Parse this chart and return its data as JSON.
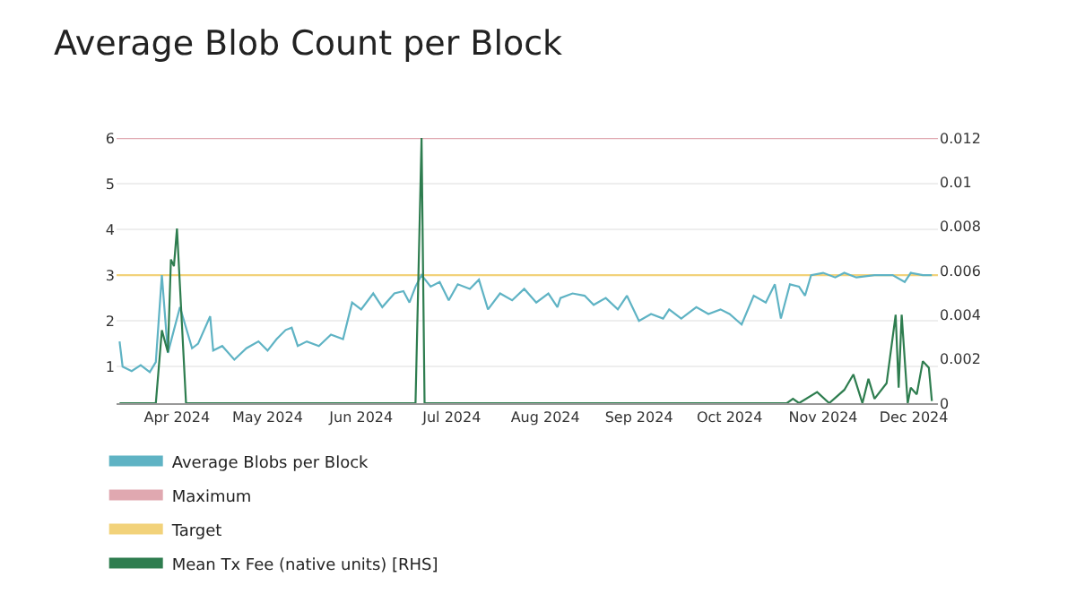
{
  "chart_data": {
    "type": "line",
    "title": "Average Blob Count per Block",
    "xlim": [
      "2024-03-12",
      "2024-12-09"
    ],
    "xticks": [
      {
        "value": "2024-04-01",
        "label": "Apr 2024"
      },
      {
        "value": "2024-05-01",
        "label": "May 2024"
      },
      {
        "value": "2024-06-01",
        "label": "Jun 2024"
      },
      {
        "value": "2024-07-01",
        "label": "Jul 2024"
      },
      {
        "value": "2024-08-01",
        "label": "Aug 2024"
      },
      {
        "value": "2024-09-01",
        "label": "Sep 2024"
      },
      {
        "value": "2024-10-01",
        "label": "Oct 2024"
      },
      {
        "value": "2024-11-01",
        "label": "Nov 2024"
      },
      {
        "value": "2024-12-01",
        "label": "Dec 2024"
      }
    ],
    "ylim": [
      0.2,
      6
    ],
    "yticks": [
      1,
      2,
      3,
      4,
      5,
      6
    ],
    "y2lim": [
      0,
      0.012
    ],
    "y2ticks": [
      0,
      0.002,
      0.004,
      0.006,
      0.008,
      0.01,
      0.012
    ],
    "grid": "y",
    "legend": "bottom",
    "ref_lines": [
      {
        "axis": "y",
        "value": 6,
        "label": "Maximum",
        "color": "#e0a8b0"
      },
      {
        "axis": "y",
        "value": 3,
        "label": "Target",
        "color": "#f2d27a"
      }
    ],
    "series": [
      {
        "name": "Average Blobs per Block",
        "color": "#5fb3c4",
        "x": [
          "2024-03-13",
          "2024-03-14",
          "2024-03-17",
          "2024-03-20",
          "2024-03-23",
          "2024-03-25",
          "2024-03-27",
          "2024-03-29",
          "2024-04-02",
          "2024-04-06",
          "2024-04-08",
          "2024-04-12",
          "2024-04-13",
          "2024-04-16",
          "2024-04-20",
          "2024-04-24",
          "2024-04-28",
          "2024-05-01",
          "2024-05-04",
          "2024-05-07",
          "2024-05-09",
          "2024-05-11",
          "2024-05-14",
          "2024-05-18",
          "2024-05-22",
          "2024-05-26",
          "2024-05-29",
          "2024-06-01",
          "2024-06-05",
          "2024-06-08",
          "2024-06-12",
          "2024-06-15",
          "2024-06-17",
          "2024-06-19",
          "2024-06-21",
          "2024-06-24",
          "2024-06-27",
          "2024-06-30",
          "2024-07-03",
          "2024-07-07",
          "2024-07-10",
          "2024-07-13",
          "2024-07-17",
          "2024-07-21",
          "2024-07-25",
          "2024-07-29",
          "2024-08-02",
          "2024-08-05",
          "2024-08-06",
          "2024-08-10",
          "2024-08-14",
          "2024-08-17",
          "2024-08-21",
          "2024-08-25",
          "2024-08-28",
          "2024-09-01",
          "2024-09-05",
          "2024-09-09",
          "2024-09-11",
          "2024-09-15",
          "2024-09-20",
          "2024-09-24",
          "2024-09-28",
          "2024-10-01",
          "2024-10-05",
          "2024-10-09",
          "2024-10-13",
          "2024-10-16",
          "2024-10-18",
          "2024-10-21",
          "2024-10-24",
          "2024-10-26",
          "2024-10-28",
          "2024-11-01",
          "2024-11-05",
          "2024-11-08",
          "2024-11-12",
          "2024-11-18",
          "2024-11-24",
          "2024-11-28",
          "2024-11-30",
          "2024-12-04",
          "2024-12-07"
        ],
        "values": [
          1.55,
          1.0,
          0.9,
          1.03,
          0.88,
          1.1,
          3.0,
          1.3,
          2.3,
          1.4,
          1.5,
          2.1,
          1.35,
          1.45,
          1.15,
          1.4,
          1.55,
          1.35,
          1.6,
          1.8,
          1.85,
          1.45,
          1.55,
          1.45,
          1.7,
          1.6,
          2.4,
          2.25,
          2.6,
          2.3,
          2.6,
          2.65,
          2.4,
          2.75,
          3.0,
          2.75,
          2.85,
          2.45,
          2.8,
          2.7,
          2.9,
          2.25,
          2.6,
          2.45,
          2.7,
          2.4,
          2.6,
          2.3,
          2.5,
          2.6,
          2.55,
          2.35,
          2.5,
          2.25,
          2.55,
          2.0,
          2.15,
          2.05,
          2.25,
          2.05,
          2.3,
          2.15,
          2.25,
          2.15,
          1.92,
          2.55,
          2.4,
          2.8,
          2.05,
          2.8,
          2.75,
          2.55,
          3.0,
          3.05,
          2.95,
          3.05,
          2.95,
          3.0,
          3.0,
          2.85,
          3.05,
          3.0,
          3.0
        ]
      },
      {
        "name": "Mean Tx Fee (native units) [RHS]",
        "color": "#2e7d4f",
        "axis": "y2",
        "x": [
          "2024-03-13",
          "2024-03-25",
          "2024-03-27",
          "2024-03-29",
          "2024-03-30",
          "2024-03-31",
          "2024-04-01",
          "2024-04-04",
          "2024-06-19",
          "2024-06-21",
          "2024-06-22",
          "2024-10-20",
          "2024-10-22",
          "2024-10-24",
          "2024-10-30",
          "2024-11-03",
          "2024-11-08",
          "2024-11-11",
          "2024-11-14",
          "2024-11-16",
          "2024-11-18",
          "2024-11-22",
          "2024-11-25",
          "2024-11-26",
          "2024-11-27",
          "2024-11-29",
          "2024-11-30",
          "2024-12-02",
          "2024-12-04",
          "2024-12-06",
          "2024-12-07"
        ],
        "values": [
          0,
          0,
          0.0033,
          0.0023,
          0.0065,
          0.0062,
          0.0079,
          0,
          0,
          0.012,
          0,
          0,
          0.0002,
          0,
          0.0005,
          0,
          0.0006,
          0.0013,
          0,
          0.0011,
          0.0002,
          0.0009,
          0.004,
          0.0007,
          0.004,
          0,
          0.0007,
          0.0004,
          0.0019,
          0.0016,
          0.0001
        ]
      }
    ]
  }
}
